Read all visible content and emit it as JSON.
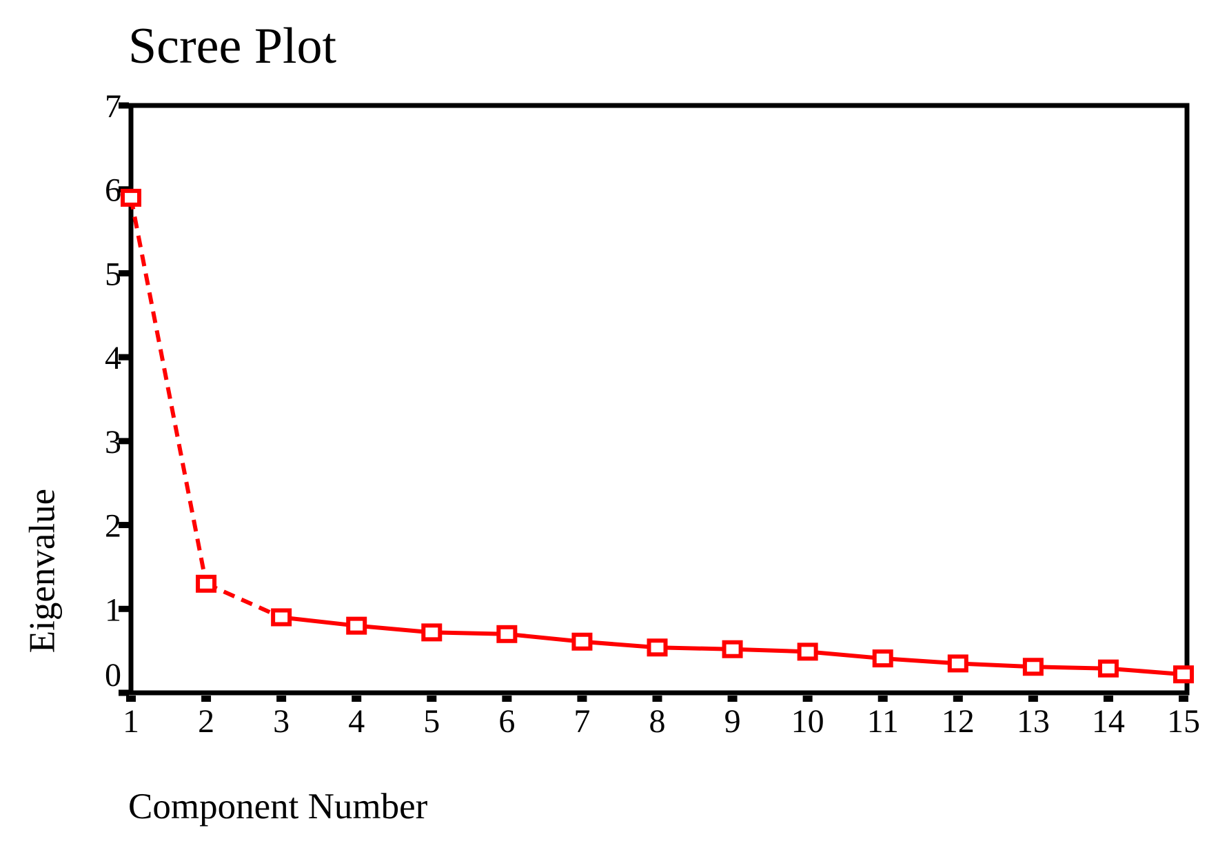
{
  "figure": {
    "background_color": "#ffffff",
    "text_color": "#000000"
  },
  "chart_data": {
    "type": "line",
    "title": "Scree Plot",
    "xlabel": "Component Number",
    "ylabel": "Eigenvalue",
    "x": [
      1,
      2,
      3,
      4,
      5,
      6,
      7,
      8,
      9,
      10,
      11,
      12,
      13,
      14,
      15
    ],
    "series": [
      {
        "name": "Eigenvalue",
        "values": [
          5.9,
          1.3,
          0.9,
          0.8,
          0.72,
          0.7,
          0.61,
          0.54,
          0.52,
          0.49,
          0.41,
          0.35,
          0.31,
          0.29,
          0.22
        ]
      }
    ],
    "xlim": [
      1,
      15
    ],
    "ylim": [
      0,
      7
    ],
    "xtick_labels": [
      "1",
      "2",
      "3",
      "4",
      "5",
      "6",
      "7",
      "8",
      "9",
      "10",
      "11",
      "12",
      "13",
      "14",
      "15"
    ],
    "ytick_labels": [
      "0",
      "1",
      "2",
      "3",
      "4",
      "5",
      "6",
      "7"
    ],
    "yticks": [
      0,
      1,
      2,
      3,
      4,
      5,
      6,
      7
    ],
    "grid": false,
    "legend": "none",
    "frame_box": true,
    "line_color": "#ff0000",
    "axis_color": "#000000",
    "marker": "open-square",
    "marker_fill": "#ffffff",
    "dashed_segment_indexes": [
      0,
      1
    ]
  }
}
